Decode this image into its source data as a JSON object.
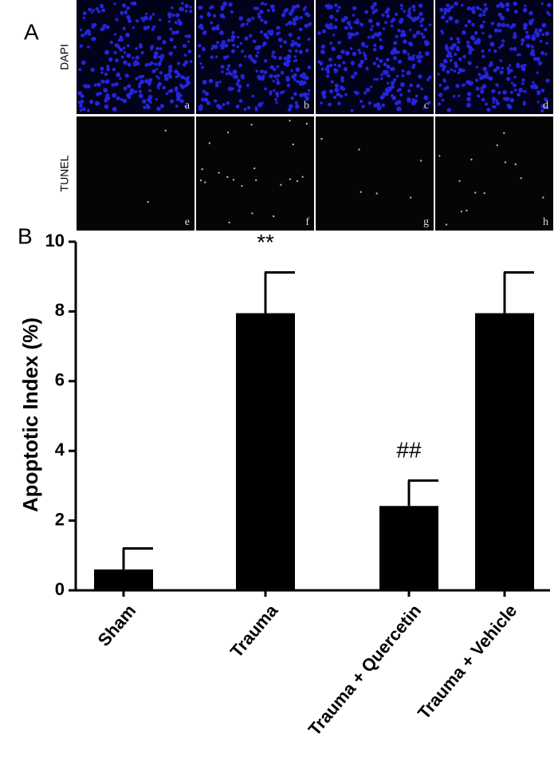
{
  "panel_a": {
    "label": "A",
    "rows": [
      "DAPI",
      "TUNEL"
    ],
    "panels": [
      "a",
      "b",
      "c",
      "d",
      "e",
      "f",
      "g",
      "h"
    ]
  },
  "chart_data": {
    "type": "bar",
    "panel_label": "B",
    "ylabel": "Apoptotic Index (%)",
    "categories": [
      "Sham",
      "Trauma",
      "Trauma + Quercetin",
      "Trauma + Vehicle"
    ],
    "values": [
      0.6,
      7.95,
      2.42,
      7.95
    ],
    "errors": [
      0.6,
      1.17,
      0.73,
      1.17
    ],
    "annotations": [
      null,
      "**",
      "##",
      null
    ],
    "color": "#000000",
    "ylim": [
      0,
      10
    ],
    "yticks": [
      0,
      2,
      4,
      6,
      8,
      10
    ]
  }
}
